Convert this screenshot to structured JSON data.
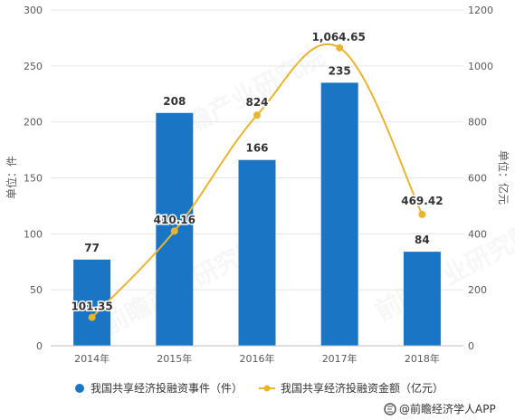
{
  "chart_data": {
    "type": "bar",
    "categories": [
      "2014年",
      "2015年",
      "2016年",
      "2017年",
      "2018年"
    ],
    "series": [
      {
        "name": "我国共享经济投融资事件（件）",
        "type": "bar",
        "axis": "left",
        "values": [
          77,
          208,
          166,
          235,
          84
        ],
        "labels": [
          "77",
          "208",
          "166",
          "235",
          "84"
        ]
      },
      {
        "name": "我国共享经济投融资金额（亿元）",
        "type": "line",
        "axis": "right",
        "values": [
          101.35,
          410.16,
          824,
          1064.65,
          469.42
        ],
        "labels": [
          "101.35",
          "410.16",
          "824",
          "1,064.65",
          "469.42"
        ]
      }
    ],
    "ylabel": "单位：件",
    "y2label": "单位：亿元",
    "ylim": [
      0,
      300
    ],
    "yticks": [
      "0",
      "50",
      "100",
      "150",
      "200",
      "250",
      "300"
    ],
    "y2lim": [
      0,
      1200
    ],
    "y2ticks": [
      "0",
      "200",
      "400",
      "600",
      "800",
      "1000",
      "1200"
    ],
    "grid": true,
    "legend_position": "bottom",
    "colors": {
      "bar": "#1a75c4",
      "line": "#e8b530"
    }
  },
  "source": {
    "text": "@前瞻经济学人APP",
    "icon": "qianzhan-logo-icon"
  },
  "watermark": {
    "text": "前瞻产业研究院"
  }
}
